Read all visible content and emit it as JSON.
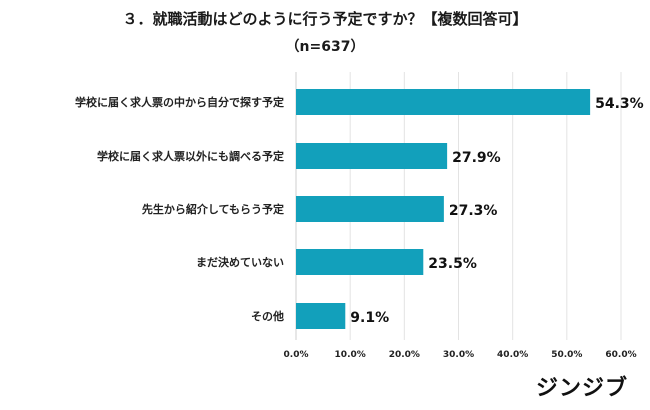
{
  "chart_data": {
    "type": "bar",
    "orientation": "horizontal",
    "title": "３．就職活動はどのように行う予定ですか？【複数回答可】",
    "subtitle": "（n=637）",
    "categories": [
      "学校に届く求人票の中から自分で探す予定",
      "学校に届く求人票以外にも調べる予定",
      "先生から紹介してもらう予定",
      "まだ決めていない",
      "その他"
    ],
    "values": [
      54.3,
      27.9,
      27.3,
      23.5,
      9.1
    ],
    "value_labels": [
      "54.3%",
      "27.9%",
      "27.3%",
      "23.5%",
      "9.1%"
    ],
    "xlim": [
      0,
      60
    ],
    "x_ticks": [
      "0.0%",
      "10.0%",
      "20.0%",
      "30.0%",
      "40.0%",
      "50.0%",
      "60.0%"
    ],
    "grid": true,
    "bar_color": "#12a0bb"
  },
  "brand": "ジンジブ"
}
